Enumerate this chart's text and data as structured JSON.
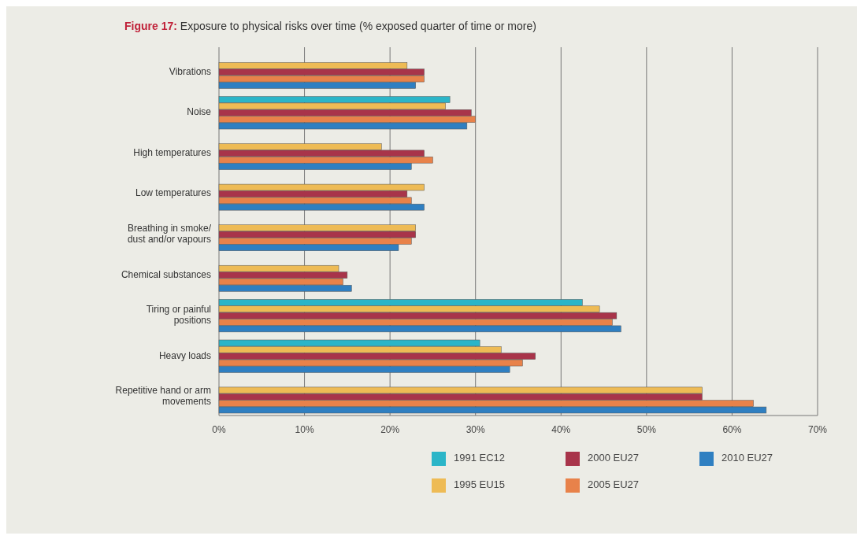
{
  "chart_data": {
    "type": "bar",
    "orientation": "horizontal",
    "title": "Figure 17: Exposure to physical risks over time (% exposed quarter of time or more)",
    "categories": [
      "Vibrations",
      "Noise",
      "High temperatures",
      "Low temperatures",
      "Breathing in smoke/ dust and/or vapours",
      "Chemical substances",
      "Tiring or painful positions",
      "Heavy loads",
      "Repetitive hand or arm movements"
    ],
    "series": [
      {
        "name": "1991 EC12",
        "color": "#2bb5c8",
        "values": [
          null,
          27,
          null,
          null,
          null,
          null,
          42.5,
          30.5,
          null
        ]
      },
      {
        "name": "1995 EU15",
        "color": "#eebb55",
        "values": [
          22,
          26.5,
          19,
          24,
          23,
          14,
          44.5,
          33,
          56.5
        ]
      },
      {
        "name": "2000 EU27",
        "color": "#a8344a",
        "values": [
          24,
          29.5,
          24,
          22,
          23,
          15,
          46.5,
          37,
          56.5
        ]
      },
      {
        "name": "2005 EU27",
        "color": "#e8824a",
        "values": [
          24,
          30,
          25,
          22.5,
          22.5,
          14.5,
          46,
          35.5,
          62.5
        ]
      },
      {
        "name": "2010 EU27",
        "color": "#2f7fc1",
        "values": [
          23,
          29,
          22.5,
          24,
          21,
          15.5,
          47,
          34,
          64
        ]
      }
    ],
    "xlim": [
      0,
      70
    ],
    "xticks": [
      {
        "value": 0,
        "label": "0%"
      },
      {
        "value": 10,
        "label": "10%"
      },
      {
        "value": 20,
        "label": "20%"
      },
      {
        "value": 30,
        "label": "30%"
      },
      {
        "value": 40,
        "label": "40%"
      },
      {
        "value": 50,
        "label": "50%"
      },
      {
        "value": 60,
        "label": "60%"
      },
      {
        "value": 70,
        "label": "70%"
      }
    ],
    "grid": "x",
    "legend": "bottom right"
  }
}
